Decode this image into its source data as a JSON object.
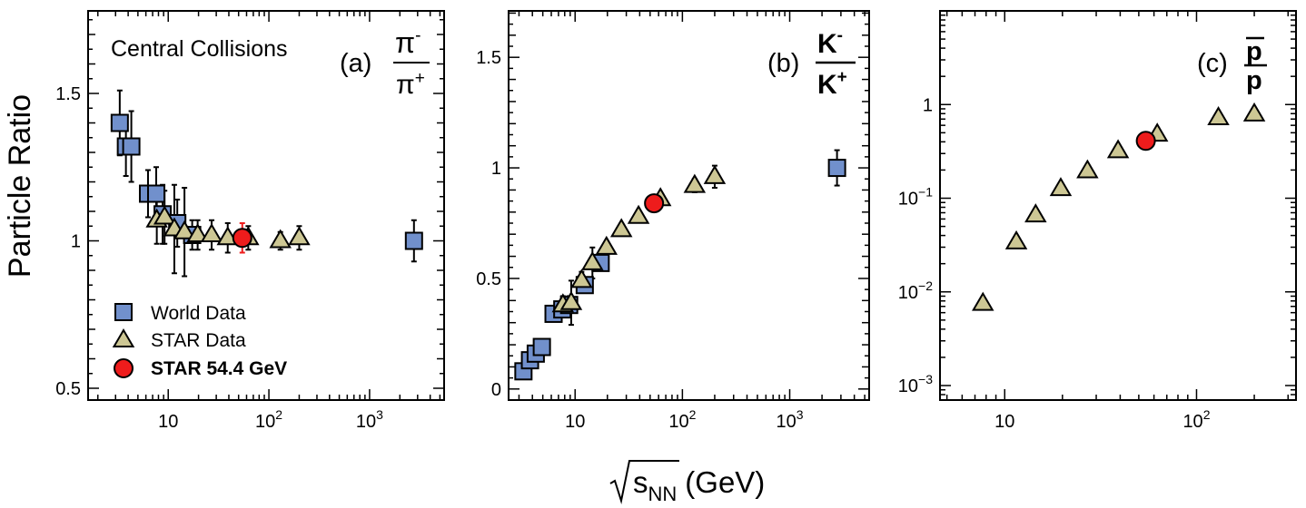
{
  "figure": {
    "ylabel": "Particle Ratio",
    "xlabel_sqrt": "√",
    "xlabel_var": "s",
    "xlabel_sub": "NN",
    "xlabel_unit": "(GeV)"
  },
  "legend": {
    "items": [
      {
        "label": "World Data",
        "marker": "square",
        "color": "#7190cc",
        "text_color": "#000000"
      },
      {
        "label": "STAR Data",
        "marker": "triangle",
        "color": "#cdc794",
        "text_color": "#000000"
      },
      {
        "label": "STAR 54.4 GeV",
        "marker": "circle",
        "color": "#ee1c1c",
        "text_color": "#ee1c1c"
      }
    ]
  },
  "colors": {
    "world": "#7190cc",
    "star": "#cdc794",
    "star54": "#ee1c1c"
  },
  "chart_data": [
    {
      "type": "scatter",
      "panel_label": "(a)",
      "ratio_num": "π",
      "ratio_num_sup": "-",
      "ratio_den": "π",
      "ratio_den_sup": "+",
      "annotation": "Central Collisions",
      "xscale": "log",
      "yscale": "linear",
      "xlim": [
        1.6,
        5500
      ],
      "ylim": [
        0.46,
        1.78
      ],
      "yticks": [
        0.5,
        1,
        1.5
      ],
      "ytick_labels": [
        "0.5",
        "1",
        "1.5"
      ],
      "xticks": [
        10,
        100,
        1000
      ],
      "xtick_labels": [
        {
          "base": "10",
          "exp": ""
        },
        {
          "base": "10",
          "exp": "2"
        },
        {
          "base": "10",
          "exp": "3"
        }
      ],
      "series": [
        {
          "name": "World Data",
          "marker": "square",
          "points": [
            {
              "x": 3.3,
              "y": 1.4,
              "err": 0.11
            },
            {
              "x": 3.8,
              "y": 1.32,
              "err": 0.1
            },
            {
              "x": 4.3,
              "y": 1.32,
              "err": 0.12
            },
            {
              "x": 6.3,
              "y": 1.16,
              "err": 0.08
            },
            {
              "x": 7.6,
              "y": 1.16,
              "err": 0.09
            },
            {
              "x": 8.8,
              "y": 1.09,
              "err": 0.1
            },
            {
              "x": 12.3,
              "y": 1.06,
              "err": 0.08
            },
            {
              "x": 17.3,
              "y": 1.02,
              "err": 0.05
            },
            {
              "x": 2760,
              "y": 1.0,
              "err": 0.07
            }
          ]
        },
        {
          "name": "STAR Data",
          "marker": "triangle",
          "points": [
            {
              "x": 7.7,
              "y": 1.07,
              "err": 0.08
            },
            {
              "x": 9.2,
              "y": 1.08,
              "err": 0.09
            },
            {
              "x": 11.5,
              "y": 1.04,
              "err": 0.15
            },
            {
              "x": 14.5,
              "y": 1.03,
              "err": 0.15
            },
            {
              "x": 19.6,
              "y": 1.02,
              "err": 0.05
            },
            {
              "x": 27,
              "y": 1.02,
              "err": 0.05
            },
            {
              "x": 39,
              "y": 1.01,
              "err": 0.05
            },
            {
              "x": 62.4,
              "y": 1.01,
              "err": 0.04
            },
            {
              "x": 130,
              "y": 1.0,
              "err": 0.03
            },
            {
              "x": 200,
              "y": 1.01,
              "err": 0.04
            }
          ]
        },
        {
          "name": "STAR 54.4 GeV",
          "marker": "circle",
          "points": [
            {
              "x": 54.4,
              "y": 1.01,
              "err": 0.05
            }
          ]
        }
      ]
    },
    {
      "type": "scatter",
      "panel_label": "(b)",
      "ratio_num": "K",
      "ratio_num_sup": "-",
      "ratio_den": "K",
      "ratio_den_sup": "+",
      "xscale": "log",
      "yscale": "linear",
      "xlim": [
        2.4,
        5500
      ],
      "ylim": [
        -0.05,
        1.71
      ],
      "yticks": [
        0,
        0.5,
        1,
        1.5
      ],
      "ytick_labels": [
        "0",
        "0.5",
        "1",
        "1.5"
      ],
      "xticks": [
        10,
        100,
        1000
      ],
      "xtick_labels": [
        {
          "base": "10",
          "exp": ""
        },
        {
          "base": "10",
          "exp": "2"
        },
        {
          "base": "10",
          "exp": "3"
        }
      ],
      "series": [
        {
          "name": "World Data",
          "marker": "square",
          "points": [
            {
              "x": 3.3,
              "y": 0.08,
              "err": 0
            },
            {
              "x": 3.8,
              "y": 0.13,
              "err": 0
            },
            {
              "x": 4.3,
              "y": 0.16,
              "err": 0
            },
            {
              "x": 4.9,
              "y": 0.19,
              "err": 0
            },
            {
              "x": 6.3,
              "y": 0.34,
              "err": 0.03
            },
            {
              "x": 7.6,
              "y": 0.36,
              "err": 0.03
            },
            {
              "x": 8.8,
              "y": 0.38,
              "err": 0.04
            },
            {
              "x": 12.3,
              "y": 0.47,
              "err": 0.03
            },
            {
              "x": 17.3,
              "y": 0.57,
              "err": 0.03
            },
            {
              "x": 2760,
              "y": 1.0,
              "err": 0.08
            }
          ]
        },
        {
          "name": "STAR Data",
          "marker": "triangle",
          "points": [
            {
              "x": 7.7,
              "y": 0.38,
              "err": 0.04
            },
            {
              "x": 9.2,
              "y": 0.39,
              "err": 0.1
            },
            {
              "x": 11.5,
              "y": 0.49,
              "err": 0.04
            },
            {
              "x": 14.5,
              "y": 0.57,
              "err": 0.07
            },
            {
              "x": 19.6,
              "y": 0.64,
              "err": 0.02
            },
            {
              "x": 27,
              "y": 0.72,
              "err": 0.02
            },
            {
              "x": 39,
              "y": 0.78,
              "err": 0.02
            },
            {
              "x": 62.4,
              "y": 0.86,
              "err": 0.02
            },
            {
              "x": 130,
              "y": 0.92,
              "err": 0.03
            },
            {
              "x": 200,
              "y": 0.96,
              "err": 0.05
            }
          ]
        },
        {
          "name": "STAR 54.4 GeV",
          "marker": "circle",
          "points": [
            {
              "x": 54.4,
              "y": 0.84,
              "err": 0.02
            }
          ]
        }
      ]
    },
    {
      "type": "scatter",
      "panel_label": "(c)",
      "ratio_num": "p",
      "ratio_num_sup": "",
      "ratio_den": "p",
      "ratio_den_sup": "",
      "ratio_num_overline": true,
      "xscale": "log",
      "yscale": "log",
      "xlim": [
        4.6,
        330
      ],
      "ylim": [
        0.0007,
        10
      ],
      "yticks": [
        0.001,
        0.01,
        0.1,
        1
      ],
      "ytick_labels": [
        {
          "base": "10",
          "exp": "−3"
        },
        {
          "base": "10",
          "exp": "−2"
        },
        {
          "base": "10",
          "exp": "−1"
        },
        {
          "base": "1",
          "exp": ""
        }
      ],
      "xticks": [
        10,
        100
      ],
      "xtick_labels": [
        {
          "base": "10",
          "exp": ""
        },
        {
          "base": "10",
          "exp": "2"
        }
      ],
      "series": [
        {
          "name": "STAR Data",
          "marker": "triangle",
          "points": [
            {
              "x": 7.7,
              "y": 0.0075
            },
            {
              "x": 11.5,
              "y": 0.034
            },
            {
              "x": 14.5,
              "y": 0.066
            },
            {
              "x": 19.6,
              "y": 0.126
            },
            {
              "x": 27,
              "y": 0.195
            },
            {
              "x": 39,
              "y": 0.32
            },
            {
              "x": 62.4,
              "y": 0.48
            },
            {
              "x": 130,
              "y": 0.72
            },
            {
              "x": 200,
              "y": 0.79
            }
          ]
        },
        {
          "name": "STAR 54.4 GeV",
          "marker": "circle",
          "points": [
            {
              "x": 54.4,
              "y": 0.41
            }
          ]
        }
      ]
    }
  ]
}
